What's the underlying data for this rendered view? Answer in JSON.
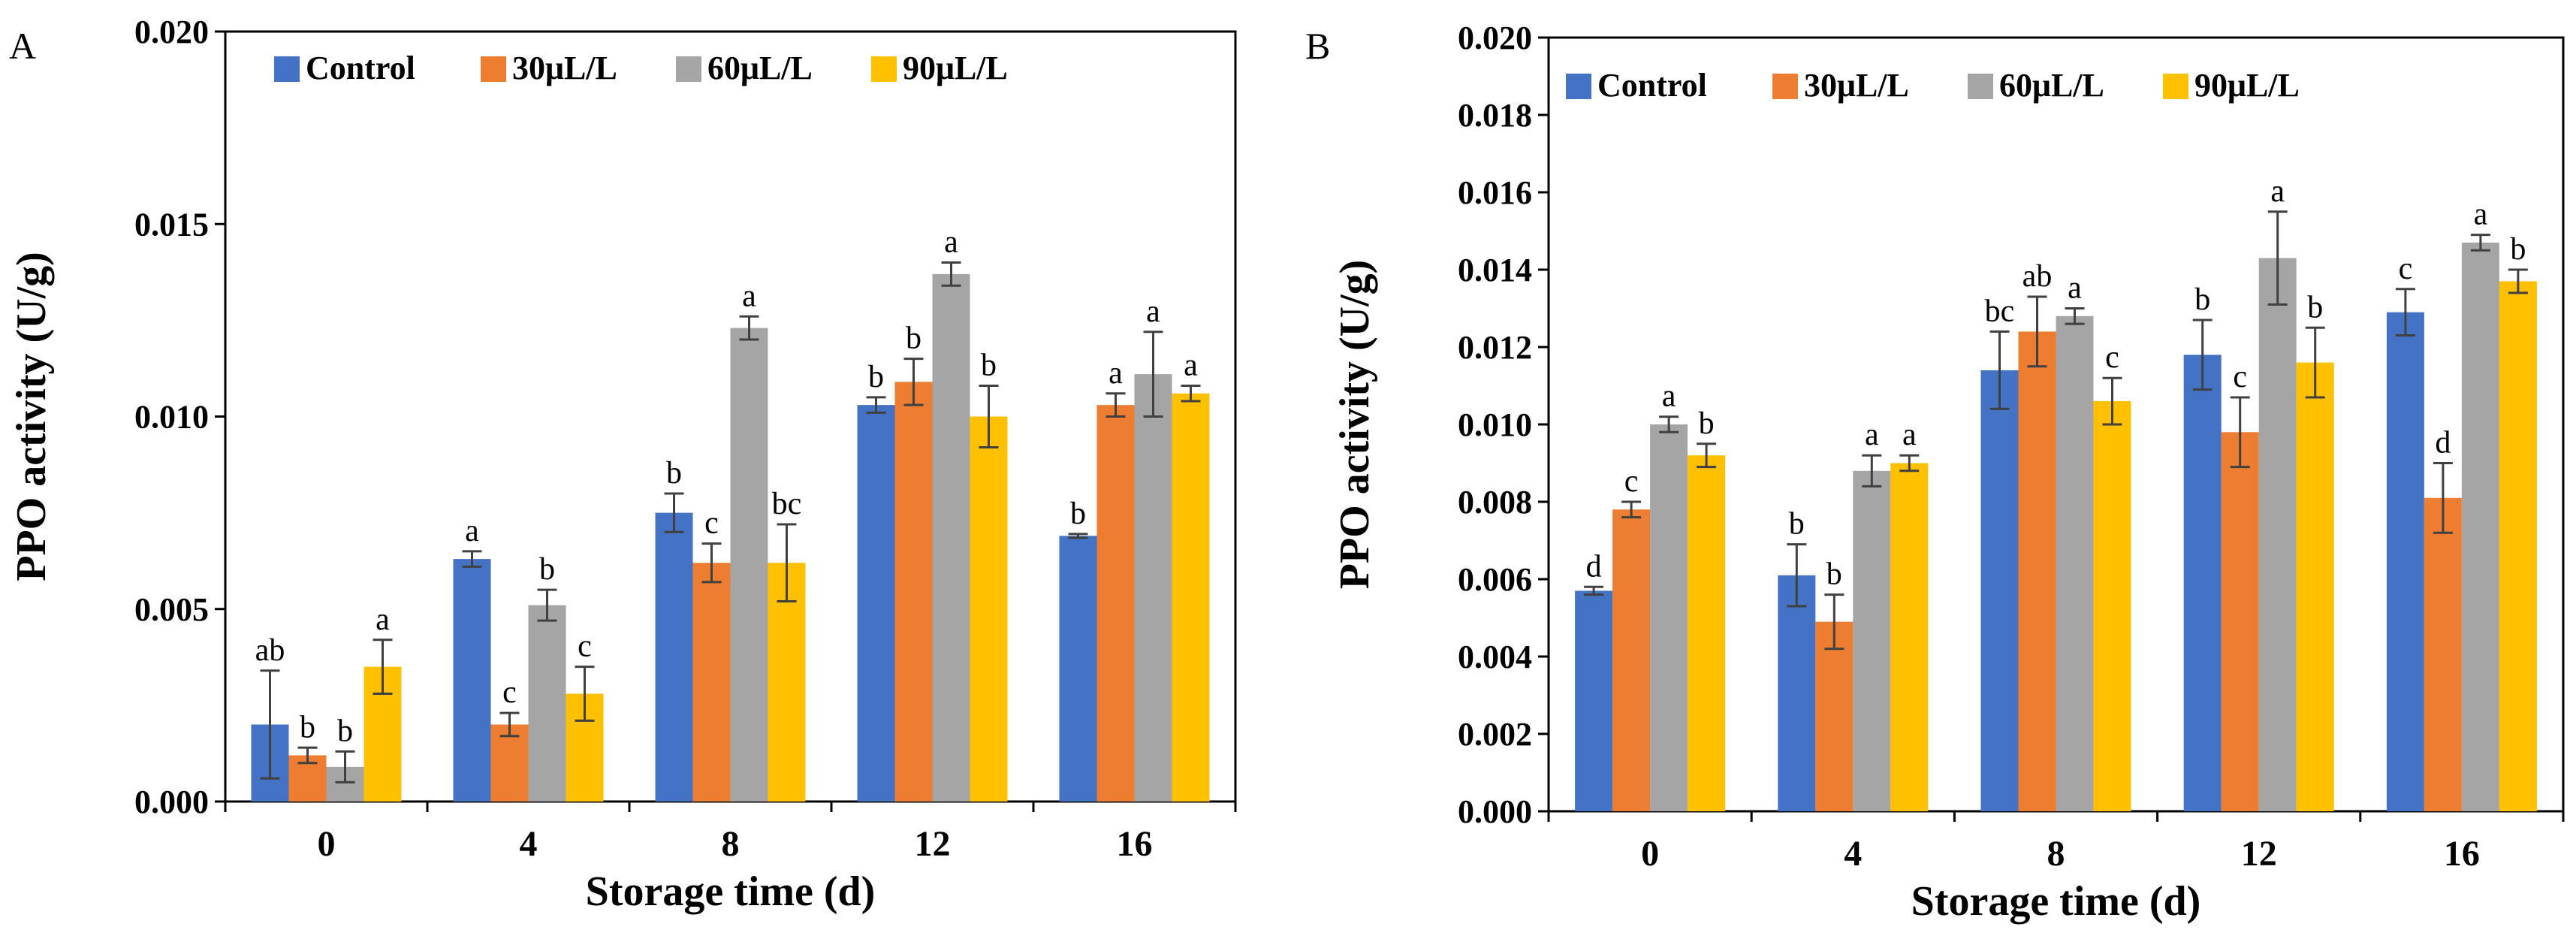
{
  "series_colors": {
    "Control": "#4472C4",
    "30μL/L": "#ED7D31",
    "60μL/L": "#A5A5A5",
    "90μL/L": "#FFC000"
  },
  "chart_data": [
    {
      "panel": "A",
      "type": "bar",
      "xlabel": "Storage time (d)",
      "ylabel": "PPO activity (U/g)",
      "ylim": [
        0,
        0.02
      ],
      "yticks": [
        "0.000",
        "0.005",
        "0.010",
        "0.015",
        "0.020"
      ],
      "categories": [
        "0",
        "4",
        "8",
        "12",
        "16"
      ],
      "legend": [
        "Control",
        "30μL/L",
        "60μL/L",
        "90μL/L"
      ],
      "series": [
        {
          "name": "Control",
          "values": [
            0.002,
            0.0063,
            0.0075,
            0.0103,
            0.0069
          ],
          "errors": [
            0.0014,
            0.0002,
            0.0005,
            0.0002,
            5e-05
          ],
          "labels": [
            "ab",
            "a",
            "b",
            "b",
            "b"
          ]
        },
        {
          "name": "30μL/L",
          "values": [
            0.0012,
            0.002,
            0.0062,
            0.0109,
            0.0103
          ],
          "errors": [
            0.0002,
            0.0003,
            0.0005,
            0.0006,
            0.0003
          ],
          "labels": [
            "b",
            "c",
            "c",
            "b",
            "a"
          ]
        },
        {
          "name": "60μL/L",
          "values": [
            0.0009,
            0.0051,
            0.0123,
            0.0137,
            0.0111
          ],
          "errors": [
            0.0004,
            0.0004,
            0.0003,
            0.0003,
            0.0011
          ],
          "labels": [
            "b",
            "b",
            "a",
            "a",
            "a"
          ]
        },
        {
          "name": "90μL/L",
          "values": [
            0.0035,
            0.0028,
            0.0062,
            0.01,
            0.0106
          ],
          "errors": [
            0.0007,
            0.0007,
            0.001,
            0.0008,
            0.0002
          ],
          "labels": [
            "a",
            "c",
            "bc",
            "b",
            "a"
          ]
        }
      ]
    },
    {
      "panel": "B",
      "type": "bar",
      "xlabel": "Storage time (d)",
      "ylabel": "PPO activity (U/g)",
      "ylim": [
        0,
        0.02
      ],
      "yticks": [
        "0.000",
        "0.002",
        "0.004",
        "0.006",
        "0.008",
        "0.010",
        "0.012",
        "0.014",
        "0.016",
        "0.018",
        "0.020"
      ],
      "categories": [
        "0",
        "4",
        "8",
        "12",
        "16"
      ],
      "legend": [
        "Control",
        "30μL/L",
        "60μL/L",
        "90μL/L"
      ],
      "series": [
        {
          "name": "Control",
          "values": [
            0.0057,
            0.0061,
            0.0114,
            0.0118,
            0.0129
          ],
          "errors": [
            0.0001,
            0.0008,
            0.001,
            0.0009,
            0.0006
          ],
          "labels": [
            "d",
            "b",
            "bc",
            "b",
            "c"
          ]
        },
        {
          "name": "30μL/L",
          "values": [
            0.0078,
            0.0049,
            0.0124,
            0.0098,
            0.0081
          ],
          "errors": [
            0.0002,
            0.0007,
            0.0009,
            0.0009,
            0.0009
          ],
          "labels": [
            "c",
            "b",
            "ab",
            "c",
            "d"
          ]
        },
        {
          "name": "60μL/L",
          "values": [
            0.01,
            0.0088,
            0.0128,
            0.0143,
            0.0147
          ],
          "errors": [
            0.0002,
            0.0004,
            0.0002,
            0.0012,
            0.0002
          ],
          "labels": [
            "a",
            "a",
            "a",
            "a",
            "a"
          ]
        },
        {
          "name": "90μL/L",
          "values": [
            0.0092,
            0.009,
            0.0106,
            0.0116,
            0.0137
          ],
          "errors": [
            0.0003,
            0.0002,
            0.0006,
            0.0009,
            0.0003
          ],
          "labels": [
            "b",
            "a",
            "c",
            "b",
            "b"
          ]
        }
      ]
    }
  ]
}
